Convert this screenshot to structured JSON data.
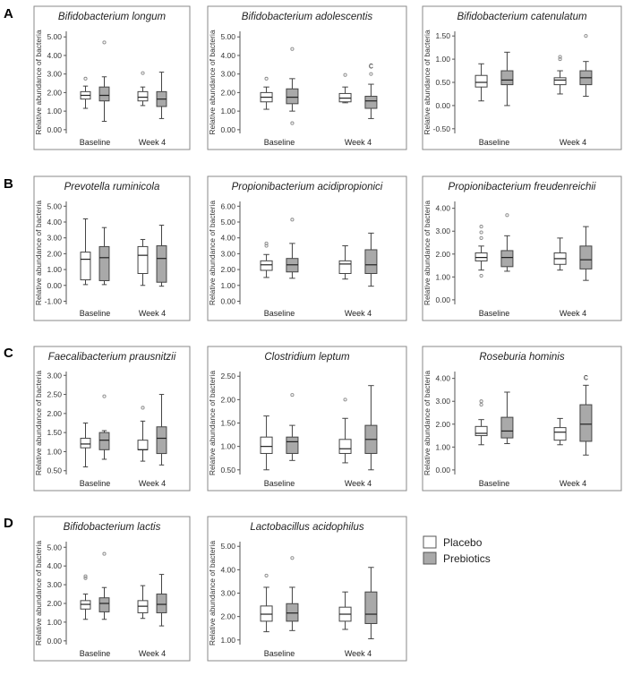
{
  "figure": {
    "panel_letters": [
      "A",
      "B",
      "C",
      "D"
    ],
    "legend": {
      "placebo": "Placebo",
      "prebiotics": "Prebiotics"
    },
    "colors": {
      "placebo": "#ffffff",
      "prebiotics": "#a9a9a9",
      "axis": "#555555",
      "frame": "#8a8a8a",
      "outlier": "#888888"
    }
  },
  "chart_data": [
    {
      "type": "boxplot",
      "title": "Bifidobacterium longum",
      "ylabel": "Relative abundance of bacteria",
      "categories": [
        "Baseline",
        "Week 4"
      ],
      "yticks": [
        "0.00",
        "1.00",
        "2.00",
        "3.00",
        "4.00",
        "5.00"
      ],
      "ylim": [
        -0.2,
        5.3
      ],
      "series": [
        {
          "name": "Placebo",
          "boxes": [
            {
              "whislo": 1.15,
              "q1": 1.65,
              "med": 1.85,
              "q3": 2.05,
              "whishi": 2.35,
              "fliers": [
                2.75
              ]
            },
            {
              "whislo": 1.3,
              "q1": 1.55,
              "med": 1.75,
              "q3": 2.05,
              "whishi": 2.3,
              "fliers": [
                3.05
              ]
            }
          ]
        },
        {
          "name": "Prebiotics",
          "boxes": [
            {
              "whislo": 0.45,
              "q1": 1.55,
              "med": 1.85,
              "q3": 2.3,
              "whishi": 2.85,
              "fliers": [
                4.7
              ]
            },
            {
              "whislo": 0.6,
              "q1": 1.25,
              "med": 1.65,
              "q3": 2.05,
              "whishi": 3.1,
              "fliers": []
            }
          ]
        }
      ]
    },
    {
      "type": "boxplot",
      "title": "Bifidobacterium adolescentis",
      "ylabel": "Relative abundance of bacteria",
      "categories": [
        "Baseline",
        "Week 4"
      ],
      "yticks": [
        "0.00",
        "1.00",
        "2.00",
        "3.00",
        "4.00",
        "5.00"
      ],
      "ylim": [
        -0.2,
        5.3
      ],
      "annotation": "c",
      "series": [
        {
          "name": "Placebo",
          "boxes": [
            {
              "whislo": 1.1,
              "q1": 1.5,
              "med": 1.75,
              "q3": 2.0,
              "whishi": 2.3,
              "fliers": [
                2.75
              ]
            },
            {
              "whislo": 1.45,
              "q1": 1.5,
              "med": 1.7,
              "q3": 1.95,
              "whishi": 2.3,
              "fliers": [
                2.95
              ]
            }
          ]
        },
        {
          "name": "Prebiotics",
          "boxes": [
            {
              "whislo": 1.0,
              "q1": 1.4,
              "med": 1.75,
              "q3": 2.2,
              "whishi": 2.75,
              "fliers": [
                4.35,
                0.35
              ]
            },
            {
              "whislo": 0.6,
              "q1": 1.15,
              "med": 1.55,
              "q3": 1.8,
              "whishi": 2.45,
              "fliers": [
                3.0
              ]
            }
          ]
        }
      ]
    },
    {
      "type": "boxplot",
      "title": "Bifidobacterium catenulatum",
      "ylabel": "Relative abundance of bacteria",
      "categories": [
        "Baseline",
        "Week 4"
      ],
      "yticks": [
        "-0.50",
        "0.00",
        "0.50",
        "1.00",
        "1.50"
      ],
      "ylim": [
        -0.6,
        1.6
      ],
      "series": [
        {
          "name": "Placebo",
          "boxes": [
            {
              "whislo": 0.1,
              "q1": 0.4,
              "med": 0.5,
              "q3": 0.65,
              "whishi": 0.9,
              "fliers": []
            },
            {
              "whislo": 0.25,
              "q1": 0.45,
              "med": 0.55,
              "q3": 0.6,
              "whishi": 0.75,
              "fliers": [
                1.0,
                1.05
              ]
            }
          ]
        },
        {
          "name": "Prebiotics",
          "boxes": [
            {
              "whislo": 0.0,
              "q1": 0.45,
              "med": 0.55,
              "q3": 0.75,
              "whishi": 1.15,
              "fliers": []
            },
            {
              "whislo": 0.2,
              "q1": 0.45,
              "med": 0.6,
              "q3": 0.75,
              "whishi": 0.95,
              "fliers": [
                1.5
              ]
            }
          ]
        }
      ]
    },
    {
      "type": "boxplot",
      "title": "Prevotella ruminicola",
      "ylabel": "Relative abundance of bacteria",
      "categories": [
        "Baseline",
        "Week 4"
      ],
      "yticks": [
        "-1.00",
        "0.00",
        "1.00",
        "2.00",
        "3.00",
        "4.00",
        "5.00"
      ],
      "ylim": [
        -1.2,
        5.3
      ],
      "series": [
        {
          "name": "Placebo",
          "boxes": [
            {
              "whislo": 0.05,
              "q1": 0.35,
              "med": 1.65,
              "q3": 2.1,
              "whishi": 4.2,
              "fliers": []
            },
            {
              "whislo": 0.0,
              "q1": 0.75,
              "med": 1.9,
              "q3": 2.45,
              "whishi": 2.9,
              "fliers": []
            }
          ]
        },
        {
          "name": "Prebiotics",
          "boxes": [
            {
              "whislo": 0.05,
              "q1": 0.3,
              "med": 1.75,
              "q3": 2.45,
              "whishi": 3.65,
              "fliers": []
            },
            {
              "whislo": -0.05,
              "q1": 0.2,
              "med": 1.7,
              "q3": 2.5,
              "whishi": 3.8,
              "fliers": []
            }
          ]
        }
      ]
    },
    {
      "type": "boxplot",
      "title": "Propionibacterium acidipropionici",
      "ylabel": "Relative abundance of bacteria",
      "categories": [
        "Baseline",
        "Week 4"
      ],
      "yticks": [
        "0.00",
        "1.00",
        "2.00",
        "3.00",
        "4.00",
        "5.00",
        "6.00"
      ],
      "ylim": [
        -0.2,
        6.3
      ],
      "series": [
        {
          "name": "Placebo",
          "boxes": [
            {
              "whislo": 1.5,
              "q1": 1.95,
              "med": 2.3,
              "q3": 2.55,
              "whishi": 2.95,
              "fliers": [
                3.5,
                3.65
              ]
            },
            {
              "whislo": 1.4,
              "q1": 1.75,
              "med": 2.35,
              "q3": 2.55,
              "whishi": 3.5,
              "fliers": []
            }
          ]
        },
        {
          "name": "Prebiotics",
          "boxes": [
            {
              "whislo": 1.45,
              "q1": 1.85,
              "med": 2.3,
              "q3": 2.7,
              "whishi": 3.65,
              "fliers": [
                5.15
              ]
            },
            {
              "whislo": 0.95,
              "q1": 1.75,
              "med": 2.3,
              "q3": 3.25,
              "whishi": 4.3,
              "fliers": []
            }
          ]
        }
      ]
    },
    {
      "type": "boxplot",
      "title": "Propionibacterium freudenreichii",
      "ylabel": "Relative abundance of bacteria",
      "categories": [
        "Baseline",
        "Week 4"
      ],
      "yticks": [
        "0.00",
        "1.00",
        "2.00",
        "3.00",
        "4.00"
      ],
      "ylim": [
        -0.2,
        4.3
      ],
      "series": [
        {
          "name": "Placebo",
          "boxes": [
            {
              "whislo": 1.3,
              "q1": 1.7,
              "med": 1.85,
              "q3": 2.05,
              "whishi": 2.35,
              "fliers": [
                2.7,
                2.95,
                3.2,
                1.05
              ]
            },
            {
              "whislo": 1.3,
              "q1": 1.55,
              "med": 1.8,
              "q3": 2.05,
              "whishi": 2.7,
              "fliers": []
            }
          ]
        },
        {
          "name": "Prebiotics",
          "boxes": [
            {
              "whislo": 1.25,
              "q1": 1.45,
              "med": 1.85,
              "q3": 2.15,
              "whishi": 2.8,
              "fliers": [
                3.7
              ]
            },
            {
              "whislo": 0.85,
              "q1": 1.35,
              "med": 1.75,
              "q3": 2.35,
              "whishi": 3.2,
              "fliers": []
            }
          ]
        }
      ]
    },
    {
      "type": "boxplot",
      "title": "Faecalibacterium prausnitzii",
      "ylabel": "Relative abundance of bacteria",
      "categories": [
        "Baseline",
        "Week 4"
      ],
      "yticks": [
        "0.50",
        "1.00",
        "1.50",
        "2.00",
        "2.50",
        "3.00"
      ],
      "ylim": [
        0.4,
        3.1
      ],
      "series": [
        {
          "name": "Placebo",
          "boxes": [
            {
              "whislo": 0.6,
              "q1": 1.1,
              "med": 1.2,
              "q3": 1.35,
              "whishi": 1.75,
              "fliers": []
            },
            {
              "whislo": 0.75,
              "q1": 1.05,
              "med": 1.05,
              "q3": 1.3,
              "whishi": 1.8,
              "fliers": [
                2.15
              ]
            }
          ]
        },
        {
          "name": "Prebiotics",
          "boxes": [
            {
              "whislo": 0.8,
              "q1": 1.05,
              "med": 1.3,
              "q3": 1.5,
              "whishi": 1.55,
              "fliers": [
                2.45
              ]
            },
            {
              "whislo": 0.65,
              "q1": 0.95,
              "med": 1.35,
              "q3": 1.65,
              "whishi": 2.5,
              "fliers": []
            }
          ]
        }
      ]
    },
    {
      "type": "boxplot",
      "title": "Clostridium leptum",
      "ylabel": "Relative abundance of bacteria",
      "categories": [
        "Baseline",
        "Week 4"
      ],
      "yticks": [
        "0.50",
        "1.00",
        "1.50",
        "2.00",
        "2.50"
      ],
      "ylim": [
        0.4,
        2.6
      ],
      "series": [
        {
          "name": "Placebo",
          "boxes": [
            {
              "whislo": 0.5,
              "q1": 0.85,
              "med": 1.0,
              "q3": 1.2,
              "whishi": 1.65,
              "fliers": []
            },
            {
              "whislo": 0.65,
              "q1": 0.85,
              "med": 0.95,
              "q3": 1.15,
              "whishi": 1.6,
              "fliers": [
                2.0
              ]
            }
          ]
        },
        {
          "name": "Prebiotics",
          "boxes": [
            {
              "whislo": 0.7,
              "q1": 0.85,
              "med": 1.1,
              "q3": 1.2,
              "whishi": 1.45,
              "fliers": [
                2.1
              ]
            },
            {
              "whislo": 0.5,
              "q1": 0.85,
              "med": 1.15,
              "q3": 1.45,
              "whishi": 2.3,
              "fliers": []
            }
          ]
        }
      ]
    },
    {
      "type": "boxplot",
      "title": "Roseburia hominis",
      "ylabel": "Relative abundance of bacteria",
      "categories": [
        "Baseline",
        "Week 4"
      ],
      "yticks": [
        "0.00",
        "1.00",
        "2.00",
        "3.00",
        "4.00"
      ],
      "ylim": [
        -0.2,
        4.3
      ],
      "annotation": "c",
      "series": [
        {
          "name": "Placebo",
          "boxes": [
            {
              "whislo": 1.1,
              "q1": 1.5,
              "med": 1.6,
              "q3": 1.9,
              "whishi": 2.2,
              "fliers": [
                2.85,
                3.0
              ]
            },
            {
              "whislo": 1.1,
              "q1": 1.3,
              "med": 1.65,
              "q3": 1.85,
              "whishi": 2.25,
              "fliers": []
            }
          ]
        },
        {
          "name": "Prebiotics",
          "boxes": [
            {
              "whislo": 1.15,
              "q1": 1.4,
              "med": 1.7,
              "q3": 2.3,
              "whishi": 3.4,
              "fliers": []
            },
            {
              "whislo": 0.65,
              "q1": 1.25,
              "med": 2.0,
              "q3": 2.85,
              "whishi": 3.7,
              "fliers": []
            }
          ]
        }
      ]
    },
    {
      "type": "boxplot",
      "title": "Bifidobacterium lactis",
      "ylabel": "Relative abundance of bacteria",
      "categories": [
        "Baseline",
        "Week 4"
      ],
      "yticks": [
        "0.00",
        "1.00",
        "2.00",
        "3.00",
        "4.00",
        "5.00"
      ],
      "ylim": [
        -0.2,
        5.3
      ],
      "series": [
        {
          "name": "Placebo",
          "boxes": [
            {
              "whislo": 1.15,
              "q1": 1.7,
              "med": 1.95,
              "q3": 2.15,
              "whishi": 2.5,
              "fliers": [
                3.35,
                3.45
              ]
            },
            {
              "whislo": 1.2,
              "q1": 1.5,
              "med": 1.85,
              "q3": 2.15,
              "whishi": 2.95,
              "fliers": []
            }
          ]
        },
        {
          "name": "Prebiotics",
          "boxes": [
            {
              "whislo": 1.15,
              "q1": 1.55,
              "med": 2.0,
              "q3": 2.3,
              "whishi": 2.85,
              "fliers": [
                4.65
              ]
            },
            {
              "whislo": 0.8,
              "q1": 1.5,
              "med": 1.95,
              "q3": 2.5,
              "whishi": 3.55,
              "fliers": []
            }
          ]
        }
      ]
    },
    {
      "type": "boxplot",
      "title": "Lactobacillus acidophilus",
      "ylabel": "Relative abundance of bacteria",
      "categories": [
        "Baseline",
        "Week 4"
      ],
      "yticks": [
        "1.00",
        "2.00",
        "3.00",
        "4.00",
        "5.00"
      ],
      "ylim": [
        0.8,
        5.2
      ],
      "series": [
        {
          "name": "Placebo",
          "boxes": [
            {
              "whislo": 1.35,
              "q1": 1.8,
              "med": 2.1,
              "q3": 2.45,
              "whishi": 3.25,
              "fliers": [
                3.75
              ]
            },
            {
              "whislo": 1.45,
              "q1": 1.8,
              "med": 2.1,
              "q3": 2.4,
              "whishi": 3.05,
              "fliers": []
            }
          ]
        },
        {
          "name": "Prebiotics",
          "boxes": [
            {
              "whislo": 1.4,
              "q1": 1.8,
              "med": 2.15,
              "q3": 2.55,
              "whishi": 3.25,
              "fliers": [
                4.5
              ]
            },
            {
              "whislo": 1.05,
              "q1": 1.7,
              "med": 2.1,
              "q3": 3.05,
              "whishi": 4.1,
              "fliers": []
            }
          ]
        }
      ]
    }
  ]
}
